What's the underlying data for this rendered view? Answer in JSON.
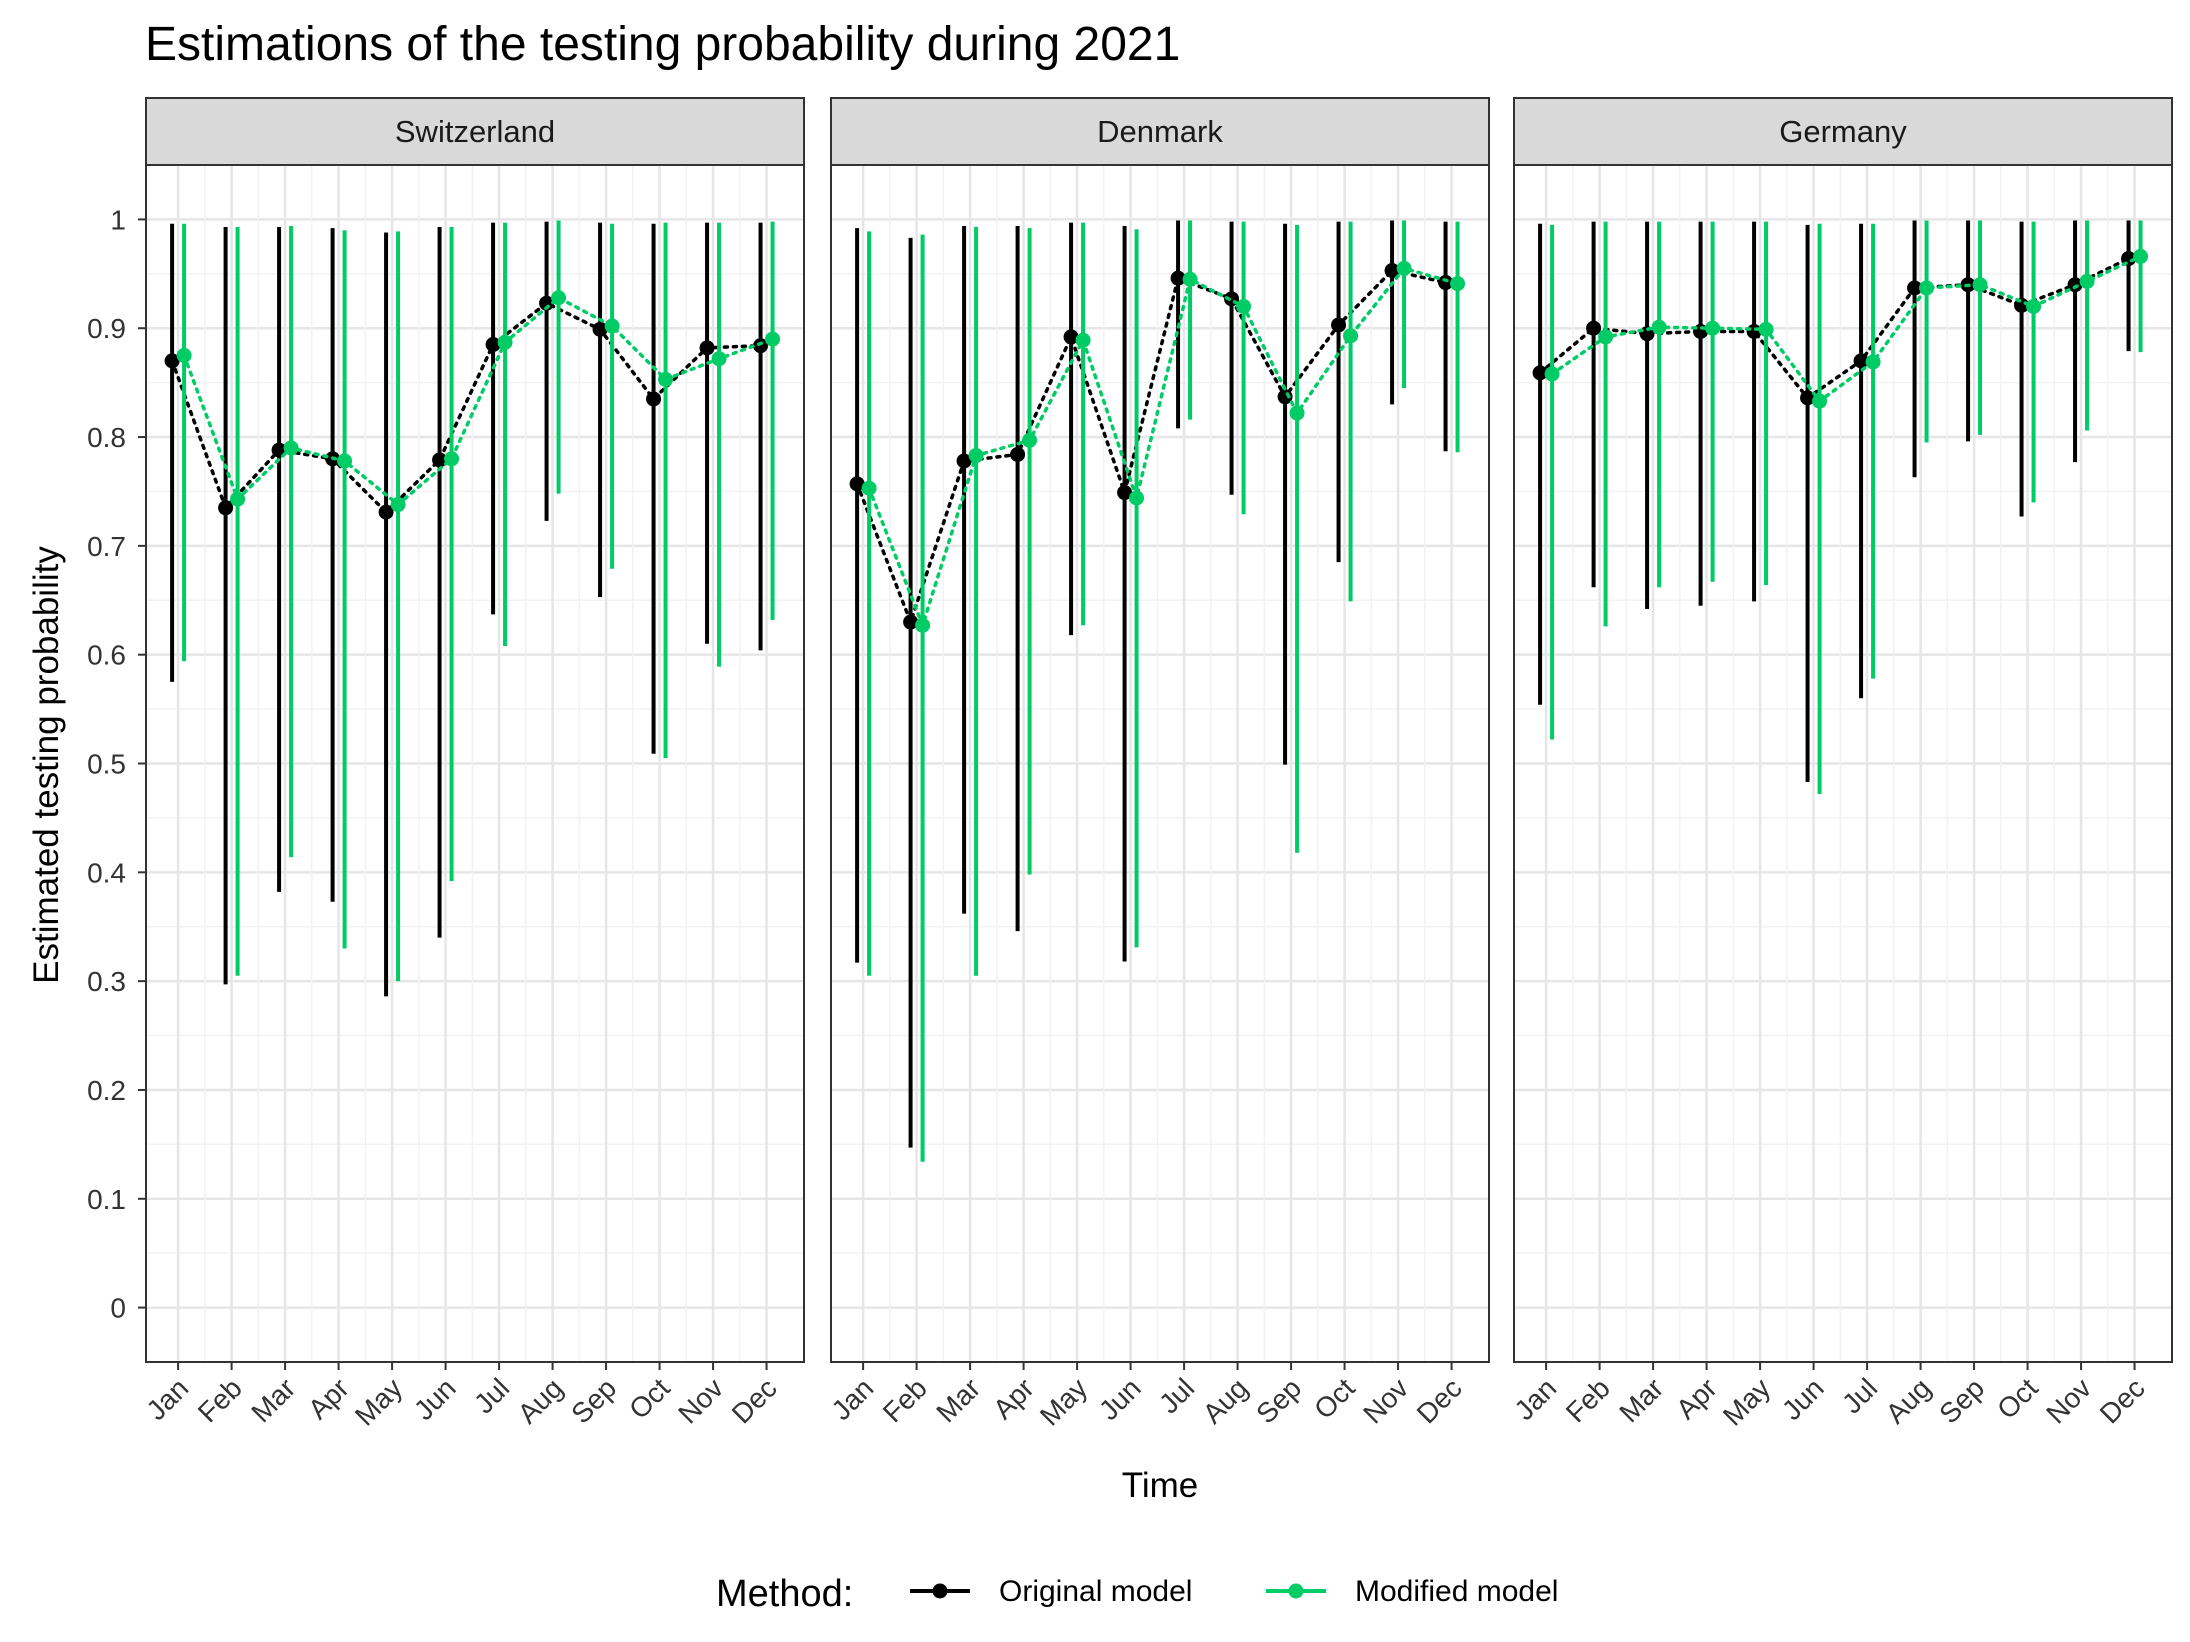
{
  "chart_data": {
    "type": "line",
    "title": "Estimations of the testing probability during 2021",
    "xlabel": "Time",
    "ylabel": "Estimated testing probability",
    "ylim": [
      -0.05,
      1.05
    ],
    "y_ticks": [
      "0",
      "0.1",
      "0.2",
      "0.3",
      "0.4",
      "0.5",
      "0.6",
      "0.7",
      "0.8",
      "0.9",
      "1"
    ],
    "grid": true,
    "legend": {
      "title": "Method:",
      "position": "bottom",
      "entries": [
        "Original model",
        "Modified model"
      ]
    },
    "colors": {
      "Original model": "#000000",
      "Modified model": "#00cc66"
    },
    "categories": [
      "Jan",
      "Feb",
      "Mar",
      "Apr",
      "May",
      "Jun",
      "Jul",
      "Aug",
      "Sep",
      "Oct",
      "Nov",
      "Dec"
    ],
    "panels": [
      {
        "name": "Switzerland",
        "series": [
          {
            "name": "Original model",
            "values": [
              0.87,
              0.735,
              0.788,
              0.78,
              0.731,
              0.779,
              0.885,
              0.923,
              0.899,
              0.835,
              0.882,
              0.884
            ],
            "lower": [
              0.575,
              0.297,
              0.382,
              0.373,
              0.286,
              0.34,
              0.637,
              0.723,
              0.653,
              0.509,
              0.61,
              0.604
            ],
            "upper": [
              0.996,
              0.993,
              0.993,
              0.992,
              0.988,
              0.993,
              0.997,
              0.998,
              0.997,
              0.996,
              0.997,
              0.997
            ]
          },
          {
            "name": "Modified model",
            "values": [
              0.875,
              0.743,
              0.79,
              0.778,
              0.738,
              0.78,
              0.887,
              0.928,
              0.902,
              0.853,
              0.872,
              0.89
            ],
            "lower": [
              0.594,
              0.305,
              0.414,
              0.33,
              0.3,
              0.392,
              0.608,
              0.748,
              0.679,
              0.505,
              0.589,
              0.632
            ],
            "upper": [
              0.996,
              0.993,
              0.994,
              0.99,
              0.989,
              0.993,
              0.997,
              0.999,
              0.996,
              0.997,
              0.997,
              0.998
            ]
          }
        ]
      },
      {
        "name": "Denmark",
        "series": [
          {
            "name": "Original model",
            "values": [
              0.757,
              0.63,
              0.778,
              0.784,
              0.892,
              0.749,
              0.946,
              0.927,
              0.837,
              0.903,
              0.953,
              0.942
            ],
            "lower": [
              0.317,
              0.147,
              0.362,
              0.346,
              0.618,
              0.318,
              0.808,
              0.747,
              0.499,
              0.685,
              0.83,
              0.787
            ],
            "upper": [
              0.992,
              0.983,
              0.994,
              0.994,
              0.997,
              0.994,
              0.999,
              0.998,
              0.996,
              0.998,
              0.999,
              0.998
            ]
          },
          {
            "name": "Modified model",
            "values": [
              0.753,
              0.627,
              0.783,
              0.797,
              0.889,
              0.744,
              0.945,
              0.92,
              0.822,
              0.893,
              0.955,
              0.941
            ],
            "lower": [
              0.305,
              0.134,
              0.305,
              0.398,
              0.627,
              0.331,
              0.816,
              0.729,
              0.418,
              0.649,
              0.845,
              0.786
            ],
            "upper": [
              0.989,
              0.986,
              0.993,
              0.992,
              0.997,
              0.991,
              0.999,
              0.998,
              0.995,
              0.998,
              0.999,
              0.998
            ]
          }
        ]
      },
      {
        "name": "Germany",
        "series": [
          {
            "name": "Original model",
            "values": [
              0.859,
              0.9,
              0.895,
              0.897,
              0.897,
              0.836,
              0.87,
              0.937,
              0.94,
              0.921,
              0.94,
              0.964
            ],
            "lower": [
              0.554,
              0.662,
              0.642,
              0.645,
              0.649,
              0.483,
              0.56,
              0.763,
              0.796,
              0.727,
              0.777,
              0.879
            ],
            "upper": [
              0.996,
              0.998,
              0.998,
              0.998,
              0.998,
              0.995,
              0.996,
              0.999,
              0.999,
              0.998,
              0.999,
              0.999
            ]
          },
          {
            "name": "Modified model",
            "values": [
              0.858,
              0.892,
              0.901,
              0.9,
              0.899,
              0.833,
              0.869,
              0.937,
              0.94,
              0.92,
              0.943,
              0.966
            ],
            "lower": [
              0.522,
              0.626,
              0.662,
              0.667,
              0.664,
              0.472,
              0.578,
              0.795,
              0.802,
              0.74,
              0.806,
              0.878
            ],
            "upper": [
              0.995,
              0.998,
              0.998,
              0.998,
              0.998,
              0.996,
              0.996,
              0.999,
              0.999,
              0.998,
              0.999,
              0.999
            ]
          }
        ]
      }
    ]
  }
}
